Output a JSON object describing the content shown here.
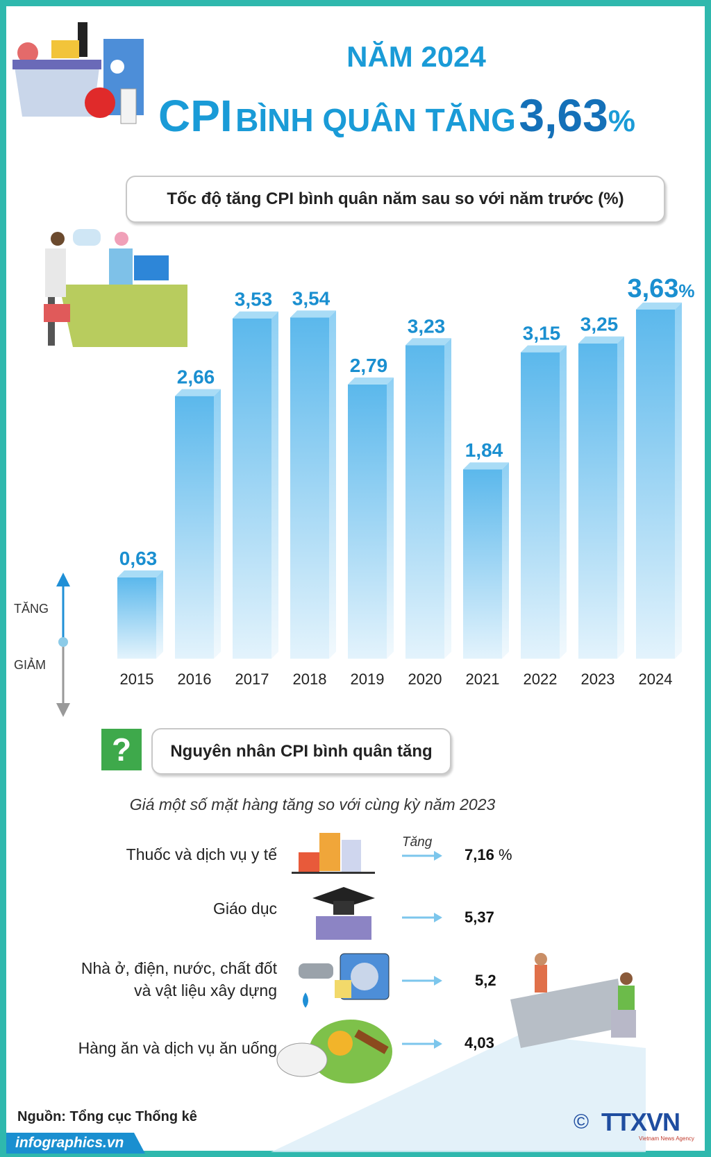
{
  "header": {
    "year_title": "NĂM 2024",
    "title_cpi": "CPI",
    "title_mid": "BÌNH QUÂN TĂNG",
    "title_value": "3,63",
    "title_unit": "%"
  },
  "chart_data": {
    "type": "bar",
    "title": "Tốc độ tăng CPI bình quân năm sau so với năm trước (%)",
    "categories": [
      "2015",
      "2016",
      "2017",
      "2018",
      "2019",
      "2020",
      "2021",
      "2022",
      "2023",
      "2024"
    ],
    "values": [
      0.63,
      2.66,
      3.53,
      3.54,
      2.79,
      3.23,
      1.84,
      3.15,
      3.25,
      3.63
    ],
    "data_labels": [
      "0,63",
      "2,66",
      "3,53",
      "3,54",
      "2,79",
      "3,23",
      "1,84",
      "3,15",
      "3,25",
      "3,63"
    ],
    "last_label_unit": "%",
    "bar_color": "#5bb8ec",
    "label_color": "#1a8fd0",
    "axis_up_label": "TĂNG",
    "axis_down_label": "GIẢM"
  },
  "causes": {
    "heading": "Nguyên nhân CPI bình quân tăng",
    "icon": "question-icon",
    "subtitle": "Giá một số mặt hàng tăng so với cùng kỳ năm 2023",
    "arrow_label": "Tăng",
    "items": [
      {
        "label": "Thuốc và dịch vụ y tế",
        "value": "7,16",
        "unit": "%",
        "icon": "medicine-icon"
      },
      {
        "label": "Giáo dục",
        "value": "5,37",
        "icon": "graduation-cap-icon"
      },
      {
        "label_line1": "Nhà ở, điện, nước, chất đốt",
        "label_line2": "và vật liệu xây dựng",
        "value": "5,2",
        "icon": "faucet-socket-icon"
      },
      {
        "label": "Hàng ăn và dịch vụ ăn uống",
        "value": "4,03",
        "icon": "food-icon"
      }
    ]
  },
  "footer": {
    "source": "Nguồn: Tổng cục Thống kê",
    "site": "infographics.vn",
    "logo": "TTXVN",
    "logo_sub": "Vietnam News Agency",
    "copyright": "©"
  }
}
